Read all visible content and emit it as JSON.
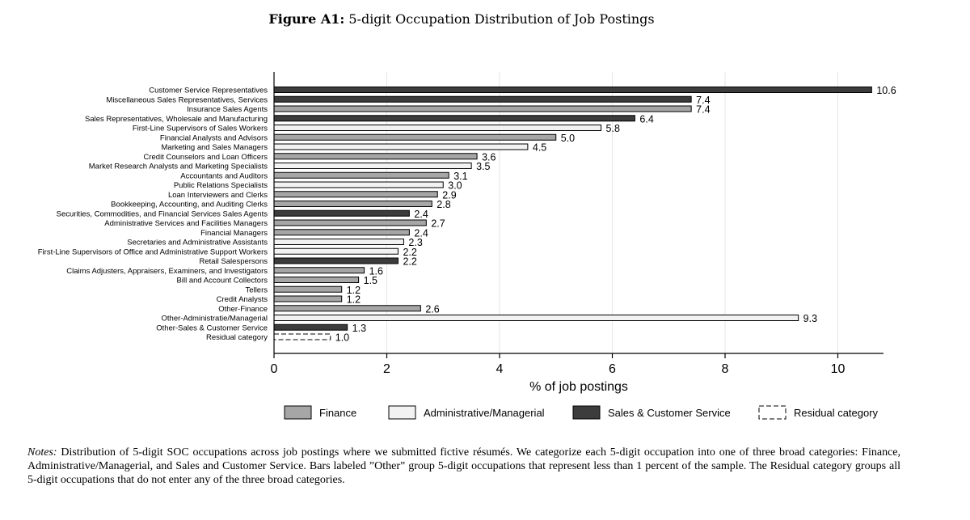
{
  "figure": {
    "label": "Figure A1:",
    "title": "5-digit Occupation Distribution of Job Postings"
  },
  "chart_data": {
    "type": "bar",
    "orientation": "horizontal",
    "xlabel": "% of job postings",
    "xlim": [
      0,
      10.8
    ],
    "xticks": [
      0,
      2,
      4,
      6,
      8,
      10
    ],
    "grid": "vertical",
    "legend_position": "bottom",
    "legend": [
      {
        "key": "finance",
        "label": "Finance"
      },
      {
        "key": "admin",
        "label": "Administrative/Managerial"
      },
      {
        "key": "sales",
        "label": "Sales & Customer Service"
      },
      {
        "key": "residual",
        "label": "Residual category"
      }
    ],
    "category_colors": {
      "finance": "#a6a6a6",
      "admin": "#f2f2f2",
      "sales": "#3c3c3c",
      "residual": "#ffffff"
    },
    "bars": [
      {
        "label": "Customer Service Representatives",
        "value": 10.6,
        "display": "10.6",
        "category": "sales"
      },
      {
        "label": "Miscellaneous Sales Representatives, Services",
        "value": 7.4,
        "display": "7.4",
        "category": "sales"
      },
      {
        "label": "Insurance Sales Agents",
        "value": 7.4,
        "display": "7.4",
        "category": "finance"
      },
      {
        "label": "Sales Representatives, Wholesale and Manufacturing",
        "value": 6.4,
        "display": "6.4",
        "category": "sales"
      },
      {
        "label": "First-Line Supervisors of Sales Workers",
        "value": 5.8,
        "display": "5.8",
        "category": "admin"
      },
      {
        "label": "Financial Analysts and Advisors",
        "value": 5.0,
        "display": "5.0",
        "category": "finance"
      },
      {
        "label": "Marketing and Sales Managers",
        "value": 4.5,
        "display": "4.5",
        "category": "admin"
      },
      {
        "label": "Credit Counselors and Loan Officers",
        "value": 3.6,
        "display": "3.6",
        "category": "finance"
      },
      {
        "label": "Market Research Analysts and Marketing Specialists",
        "value": 3.5,
        "display": "3.5",
        "category": "admin"
      },
      {
        "label": "Accountants and Auditors",
        "value": 3.1,
        "display": "3.1",
        "category": "finance"
      },
      {
        "label": "Public Relations Specialists",
        "value": 3.0,
        "display": "3.0",
        "category": "admin"
      },
      {
        "label": "Loan Interviewers and Clerks",
        "value": 2.9,
        "display": "2.9",
        "category": "finance"
      },
      {
        "label": "Bookkeeping, Accounting, and Auditing Clerks",
        "value": 2.8,
        "display": "2.8",
        "category": "finance"
      },
      {
        "label": "Securities, Commodities, and Financial Services Sales Agents",
        "value": 2.4,
        "display": "2.4",
        "category": "sales"
      },
      {
        "label": "Administrative Services and Facilities Managers",
        "value": 2.7,
        "display": "2.7",
        "category": "finance"
      },
      {
        "label": "Financial Managers",
        "value": 2.4,
        "display": "2.4",
        "category": "finance"
      },
      {
        "label": "Secretaries and Administrative Assistants",
        "value": 2.3,
        "display": "2.3",
        "category": "admin"
      },
      {
        "label": "First-Line Supervisors of Office and Administrative Support Workers",
        "value": 2.2,
        "display": "2.2",
        "category": "admin"
      },
      {
        "label": "Retail Salespersons",
        "value": 2.2,
        "display": "2.2",
        "category": "sales"
      },
      {
        "label": "Claims Adjusters, Appraisers, Examiners, and Investigators",
        "value": 1.6,
        "display": "1.6",
        "category": "finance"
      },
      {
        "label": "Bill and Account Collectors",
        "value": 1.5,
        "display": "1.5",
        "category": "finance"
      },
      {
        "label": "Tellers",
        "value": 1.2,
        "display": "1.2",
        "category": "finance"
      },
      {
        "label": "Credit Analysts",
        "value": 1.2,
        "display": "1.2",
        "category": "finance"
      },
      {
        "label": "Other-Finance",
        "value": 2.6,
        "display": "2.6",
        "category": "finance"
      },
      {
        "label": "Other-Administratie/Managerial",
        "value": 9.3,
        "display": "9.3",
        "category": "admin"
      },
      {
        "label": "Other-Sales & Customer Service",
        "value": 1.3,
        "display": "1.3",
        "category": "sales"
      },
      {
        "label": "Residual category",
        "value": 1.0,
        "display": "1.0",
        "category": "residual"
      }
    ]
  },
  "notes": {
    "label": "Notes:",
    "text": "Distribution of 5-digit SOC occupations across job postings where we submitted fictive résumés. We categorize each 5-digit occupation into one of three broad categories: Finance, Administrative/Managerial, and Sales and Customer Service. Bars labeled ”Other” group 5-digit occupations that represent less than 1 percent of the sample. The Residual category groups all 5-digit occupations that do not enter any of the three broad categories."
  }
}
